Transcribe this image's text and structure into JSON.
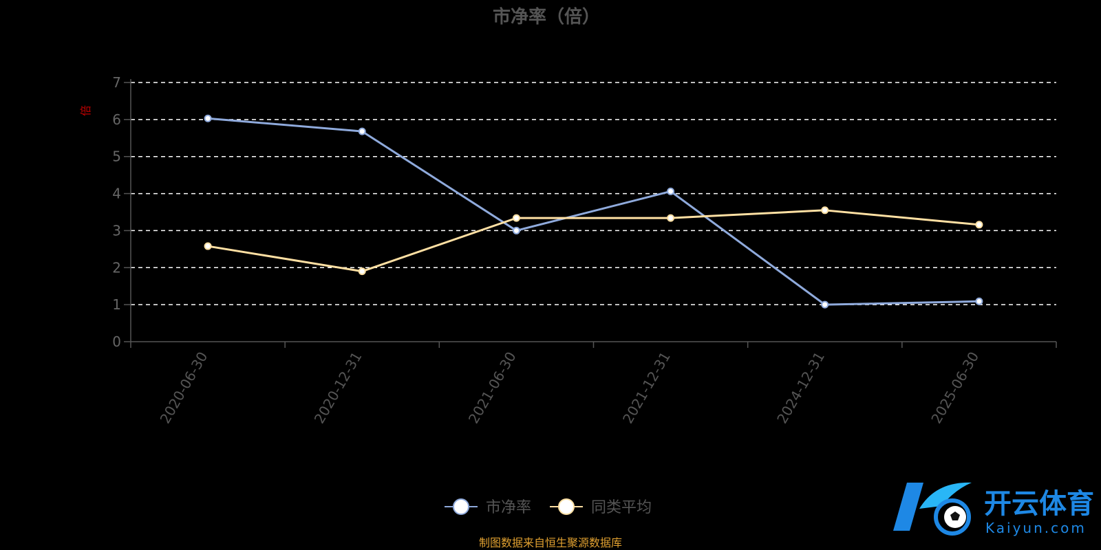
{
  "colors": {
    "background": "#000000",
    "series_pb": "#8faadc",
    "series_avg": "#ffe0a3",
    "grid": "#ffffff",
    "axis": "#555555",
    "unit": "#c00000",
    "source": "#e0a030",
    "logo_blue": "#1e88e5"
  },
  "logo": {
    "name": "开云体育",
    "url": "Kaiyun.com"
  },
  "footer": {
    "source": "制图数据来自恒生聚源数据库"
  },
  "chart_data": {
    "type": "line",
    "title": "市净率（倍）",
    "ylabel": "倍",
    "xlabel": "",
    "categories": [
      "2020-06-30",
      "2020-12-31",
      "2021-06-30",
      "2021-12-31",
      "2024-12-31",
      "2025-06-30"
    ],
    "ylim": [
      0,
      7
    ],
    "yticks": [
      0,
      1,
      2,
      3,
      4,
      5,
      6,
      7
    ],
    "grid": true,
    "legend_position": "bottom-center",
    "series": [
      {
        "name": "市净率",
        "values": [
          6.03,
          5.68,
          3.0,
          4.06,
          1.0,
          1.09
        ]
      },
      {
        "name": "同类平均",
        "values": [
          2.58,
          1.9,
          3.34,
          3.34,
          3.55,
          3.16
        ]
      }
    ]
  }
}
